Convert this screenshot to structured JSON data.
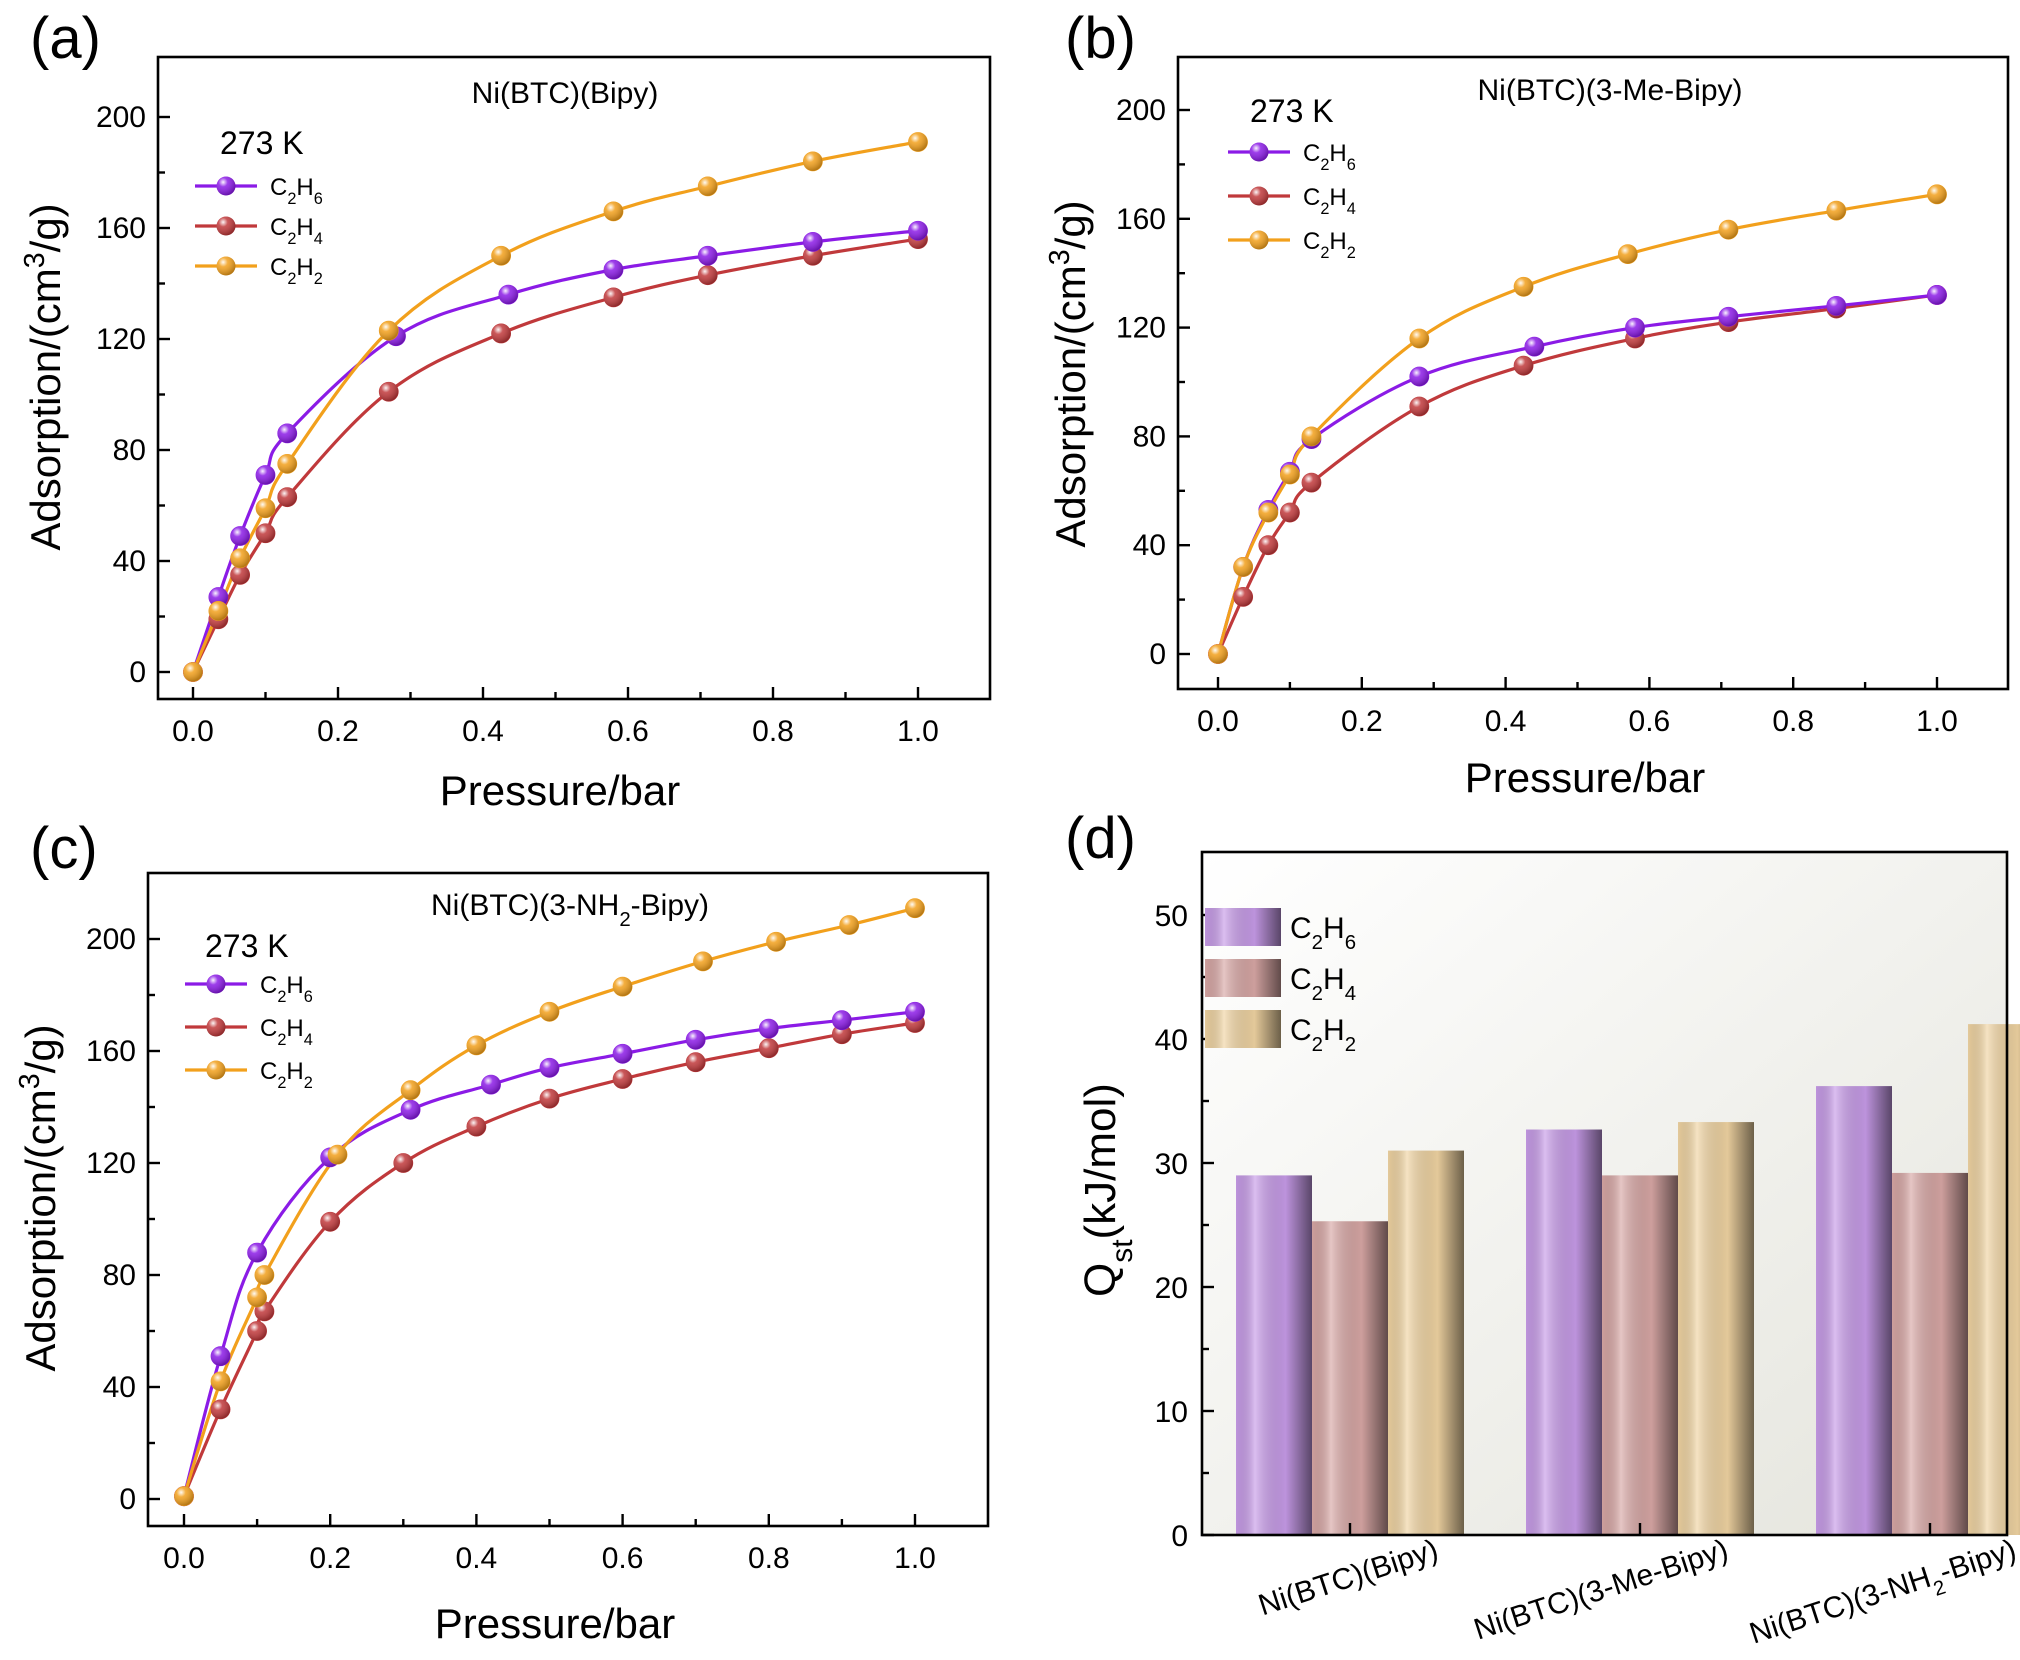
{
  "panels": [
    {
      "letter": "(a)",
      "title_parts": [
        "Ni(BTC)(Bipy)"
      ],
      "temperature": "273 K",
      "xlabel": "Pressure/bar",
      "ylabel_parts": [
        "Adsorption/(cm",
        "3",
        "/g)"
      ],
      "xticks": [
        "0.0",
        "0.2",
        "0.4",
        "0.6",
        "0.8",
        "1.0"
      ],
      "yticks": [
        "0",
        "40",
        "80",
        "120",
        "160",
        "200"
      ]
    },
    {
      "letter": "(b)",
      "title_parts": [
        "Ni(BTC)(3-Me-Bipy)"
      ],
      "temperature": "273 K",
      "xlabel": "Pressure/bar",
      "ylabel_parts": [
        "Adsorption/(cm",
        "3",
        "/g)"
      ],
      "xticks": [
        "0.0",
        "0.2",
        "0.4",
        "0.6",
        "0.8",
        "1.0"
      ],
      "yticks": [
        "0",
        "40",
        "80",
        "120",
        "160",
        "200"
      ]
    },
    {
      "letter": "(c)",
      "title_parts": [
        "Ni(BTC)(3-NH",
        "2",
        "-Bipy)"
      ],
      "temperature": "273 K",
      "xlabel": "Pressure/bar",
      "ylabel_parts": [
        "Adsorption/(cm",
        "3",
        "/g)"
      ],
      "xticks": [
        "0.0",
        "0.2",
        "0.4",
        "0.6",
        "0.8",
        "1.0"
      ],
      "yticks": [
        "0",
        "40",
        "80",
        "120",
        "160",
        "200"
      ]
    },
    {
      "letter": "(d)",
      "ylabel_parts": [
        "Q",
        "st",
        "(kJ/mol)"
      ],
      "yticks": [
        "0",
        "10",
        "20",
        "30",
        "40",
        "50"
      ],
      "category_labels": [
        [
          "Ni(BTC)(Bipy)"
        ],
        [
          "Ni(BTC)(3-Me-Bipy)"
        ],
        [
          "Ni(BTC)(3-NH",
          "2",
          "-Bipy)"
        ]
      ]
    }
  ],
  "legend": [
    {
      "parts": [
        "C",
        "2",
        "H",
        "6"
      ],
      "color": "#8b1be6"
    },
    {
      "parts": [
        "C",
        "2",
        "H",
        "4"
      ],
      "color": "#c0393b"
    },
    {
      "parts": [
        "C",
        "2",
        "H",
        "2"
      ],
      "color": "#f2a01c"
    }
  ],
  "colors": {
    "C2H6_line": "#8b1be6",
    "C2H4_line": "#c0393b",
    "C2H2_line": "#f2a01c",
    "C2H6_bar": "#c79be8",
    "C2H4_bar": "#d8a7a5",
    "C2H2_bar": "#f0d4a2",
    "plot_bg_d": "#f0f0ea"
  },
  "chart_data": [
    {
      "type": "line",
      "title": "Ni(BTC)(Bipy)",
      "xlabel": "Pressure/bar",
      "ylabel": "Adsorption/(cm3/g)",
      "xlim": [
        -0.05,
        1.1
      ],
      "ylim": [
        -10,
        220
      ],
      "series": [
        {
          "name": "C2H6",
          "x": [
            0,
            0.035,
            0.065,
            0.1,
            0.13,
            0.28,
            0.435,
            0.58,
            0.71,
            0.855,
            1.0
          ],
          "y": [
            0,
            27,
            49,
            71,
            86,
            121,
            136,
            145,
            150,
            155,
            159
          ]
        },
        {
          "name": "C2H4",
          "x": [
            0,
            0.035,
            0.065,
            0.1,
            0.13,
            0.27,
            0.425,
            0.58,
            0.71,
            0.855,
            1.0
          ],
          "y": [
            0,
            19,
            35,
            50,
            63,
            101,
            122,
            135,
            143,
            150,
            156
          ]
        },
        {
          "name": "C2H2",
          "x": [
            0,
            0.035,
            0.065,
            0.1,
            0.13,
            0.27,
            0.425,
            0.58,
            0.71,
            0.855,
            1.0
          ],
          "y": [
            0,
            22,
            41,
            59,
            75,
            123,
            150,
            166,
            175,
            184,
            191
          ]
        }
      ]
    },
    {
      "type": "line",
      "title": "Ni(BTC)(3-Me-Bipy)",
      "xlabel": "Pressure/bar",
      "ylabel": "Adsorption/(cm3/g)",
      "xlim": [
        -0.05,
        1.1
      ],
      "ylim": [
        -10,
        220
      ],
      "series": [
        {
          "name": "C2H6",
          "x": [
            0,
            0.035,
            0.07,
            0.1,
            0.13,
            0.28,
            0.44,
            0.58,
            0.71,
            0.86,
            1.0
          ],
          "y": [
            0,
            32,
            53,
            67,
            79,
            102,
            113,
            120,
            124,
            128,
            132
          ]
        },
        {
          "name": "C2H4",
          "x": [
            0,
            0.035,
            0.07,
            0.1,
            0.13,
            0.28,
            0.425,
            0.58,
            0.71,
            0.86,
            1.0
          ],
          "y": [
            0,
            21,
            40,
            52,
            63,
            91,
            106,
            116,
            122,
            127,
            132
          ]
        },
        {
          "name": "C2H2",
          "x": [
            0,
            0.035,
            0.07,
            0.1,
            0.13,
            0.28,
            0.425,
            0.57,
            0.71,
            0.86,
            1.0
          ],
          "y": [
            0,
            32,
            52,
            66,
            80,
            116,
            135,
            147,
            156,
            163,
            169
          ]
        }
      ]
    },
    {
      "type": "line",
      "title": "Ni(BTC)(3-NH2-Bipy)",
      "xlabel": "Pressure/bar",
      "ylabel": "Adsorption/(cm3/g)",
      "xlim": [
        -0.05,
        1.1
      ],
      "ylim": [
        -10,
        220
      ],
      "series": [
        {
          "name": "C2H6",
          "x": [
            0,
            0.05,
            0.1,
            0.2,
            0.31,
            0.42,
            0.5,
            0.6,
            0.7,
            0.8,
            0.9,
            1.0
          ],
          "y": [
            1,
            51,
            88,
            122,
            139,
            148,
            154,
            159,
            164,
            168,
            171,
            174
          ]
        },
        {
          "name": "C2H4",
          "x": [
            0,
            0.05,
            0.1,
            0.11,
            0.2,
            0.3,
            0.4,
            0.5,
            0.6,
            0.7,
            0.8,
            0.9,
            1.0
          ],
          "y": [
            1,
            32,
            60,
            67,
            99,
            120,
            133,
            143,
            150,
            156,
            161,
            166,
            170
          ]
        },
        {
          "name": "C2H2",
          "x": [
            0,
            0.05,
            0.1,
            0.11,
            0.21,
            0.31,
            0.4,
            0.5,
            0.6,
            0.71,
            0.81,
            0.91,
            1.0
          ],
          "y": [
            1,
            42,
            72,
            80,
            123,
            146,
            162,
            174,
            183,
            192,
            199,
            205,
            211
          ]
        }
      ]
    },
    {
      "type": "bar",
      "ylabel": "Qst(kJ/mol)",
      "ylim": [
        0,
        55
      ],
      "categories": [
        "Ni(BTC)(Bipy)",
        "Ni(BTC)(3-Me-Bipy)",
        "Ni(BTC)(3-NH2-Bipy)"
      ],
      "series": [
        {
          "name": "C2H6",
          "values": [
            29.0,
            32.7,
            36.2
          ]
        },
        {
          "name": "C2H4",
          "values": [
            25.3,
            29.0,
            29.2
          ]
        },
        {
          "name": "C2H2",
          "values": [
            31.0,
            33.3,
            41.2
          ]
        }
      ]
    }
  ]
}
